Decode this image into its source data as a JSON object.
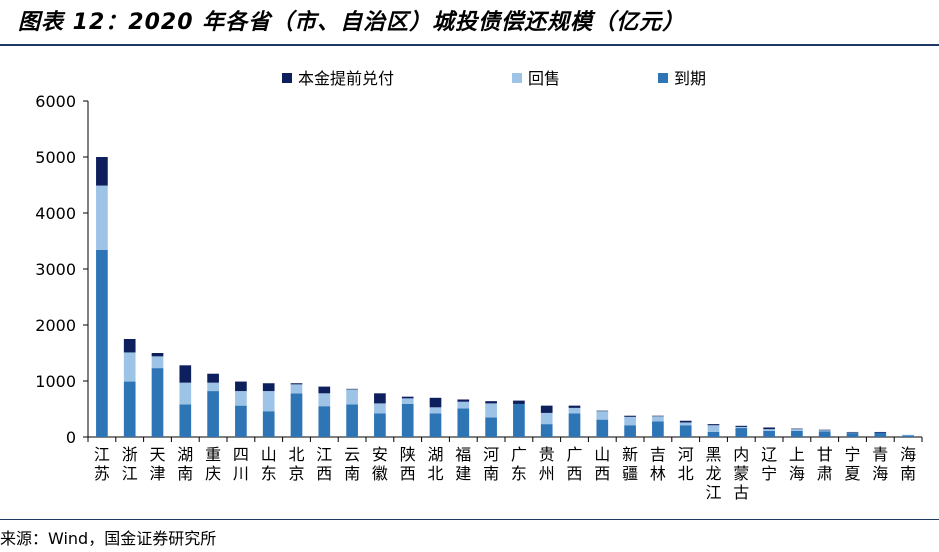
{
  "title": "图表 12：2020 年各省（市、自治区）城投债偿还规模（亿元）",
  "source": "来源：Wind，国金证券研究所",
  "chart_data": {
    "type": "bar",
    "stacked": true,
    "categories": [
      "江苏",
      "浙江",
      "天津",
      "湖南",
      "重庆",
      "四川",
      "山东",
      "北京",
      "江西",
      "云南",
      "安徽",
      "陕西",
      "湖北",
      "福建",
      "河南",
      "广东",
      "贵州",
      "广西",
      "山西",
      "新疆",
      "吉林",
      "河北",
      "黑龙江",
      "内蒙古",
      "辽宁",
      "上海",
      "甘肃",
      "宁夏",
      "青海",
      "海南"
    ],
    "series": [
      {
        "name": "到期",
        "color": "#2e75b6",
        "values": [
          3340,
          990,
          1230,
          580,
          820,
          560,
          460,
          780,
          550,
          580,
          420,
          590,
          420,
          510,
          350,
          590,
          230,
          420,
          310,
          210,
          280,
          210,
          90,
          160,
          110,
          110,
          100,
          70,
          80,
          30
        ]
      },
      {
        "name": "回售",
        "color": "#9dc3e6",
        "values": [
          1150,
          520,
          210,
          390,
          150,
          260,
          360,
          160,
          230,
          270,
          180,
          100,
          110,
          120,
          250,
          0,
          200,
          100,
          150,
          150,
          90,
          50,
          120,
          20,
          30,
          30,
          20,
          10,
          0,
          10
        ]
      },
      {
        "name": "本金提前兑付",
        "color": "#0d1f5c",
        "values": [
          510,
          240,
          60,
          310,
          160,
          170,
          140,
          20,
          120,
          10,
          180,
          30,
          170,
          40,
          40,
          60,
          130,
          40,
          10,
          20,
          10,
          30,
          20,
          20,
          30,
          10,
          10,
          10,
          10,
          0
        ]
      }
    ],
    "legend_order": [
      "本金提前兑付",
      "回售",
      "到期"
    ],
    "ylim": [
      0,
      6000
    ],
    "yticks": [
      0,
      1000,
      2000,
      3000,
      4000,
      5000,
      6000
    ],
    "legend_position": "top-center",
    "grid": false
  }
}
